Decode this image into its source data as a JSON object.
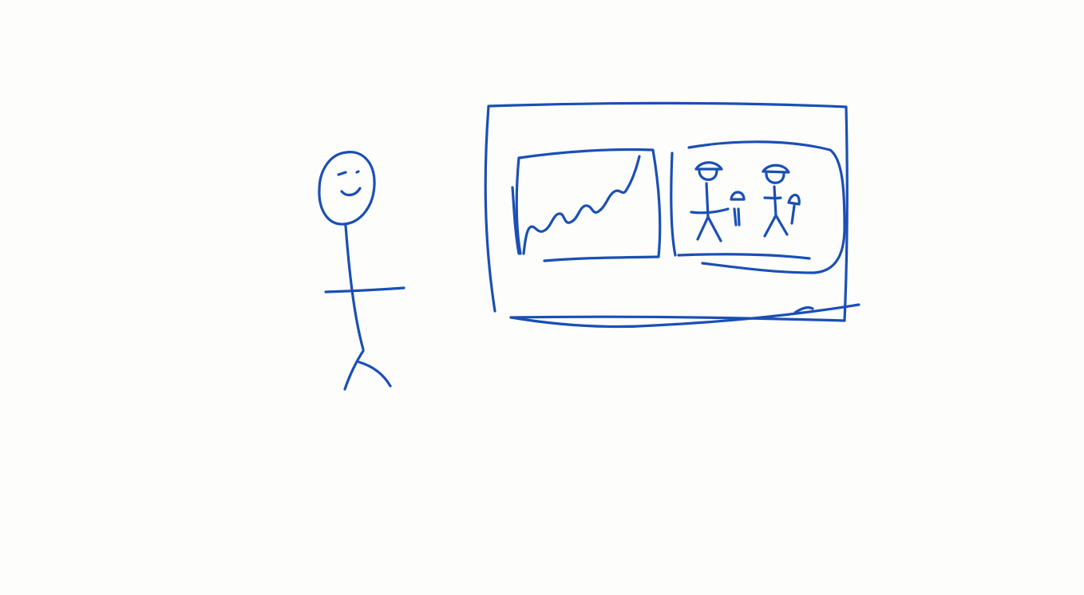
{
  "colors": {
    "paper": "#fdfdfb",
    "ink": "#1a4fb5"
  },
  "sketch": {
    "figure": {
      "icon": "stick-figure-icon",
      "expression": "smiling"
    },
    "board": {
      "icon": "presentation-board-icon",
      "panels": [
        {
          "icon": "line-chart-icon",
          "trend": "rising zig-zag"
        },
        {
          "icon": "people-icon",
          "figures": 4
        }
      ]
    }
  }
}
